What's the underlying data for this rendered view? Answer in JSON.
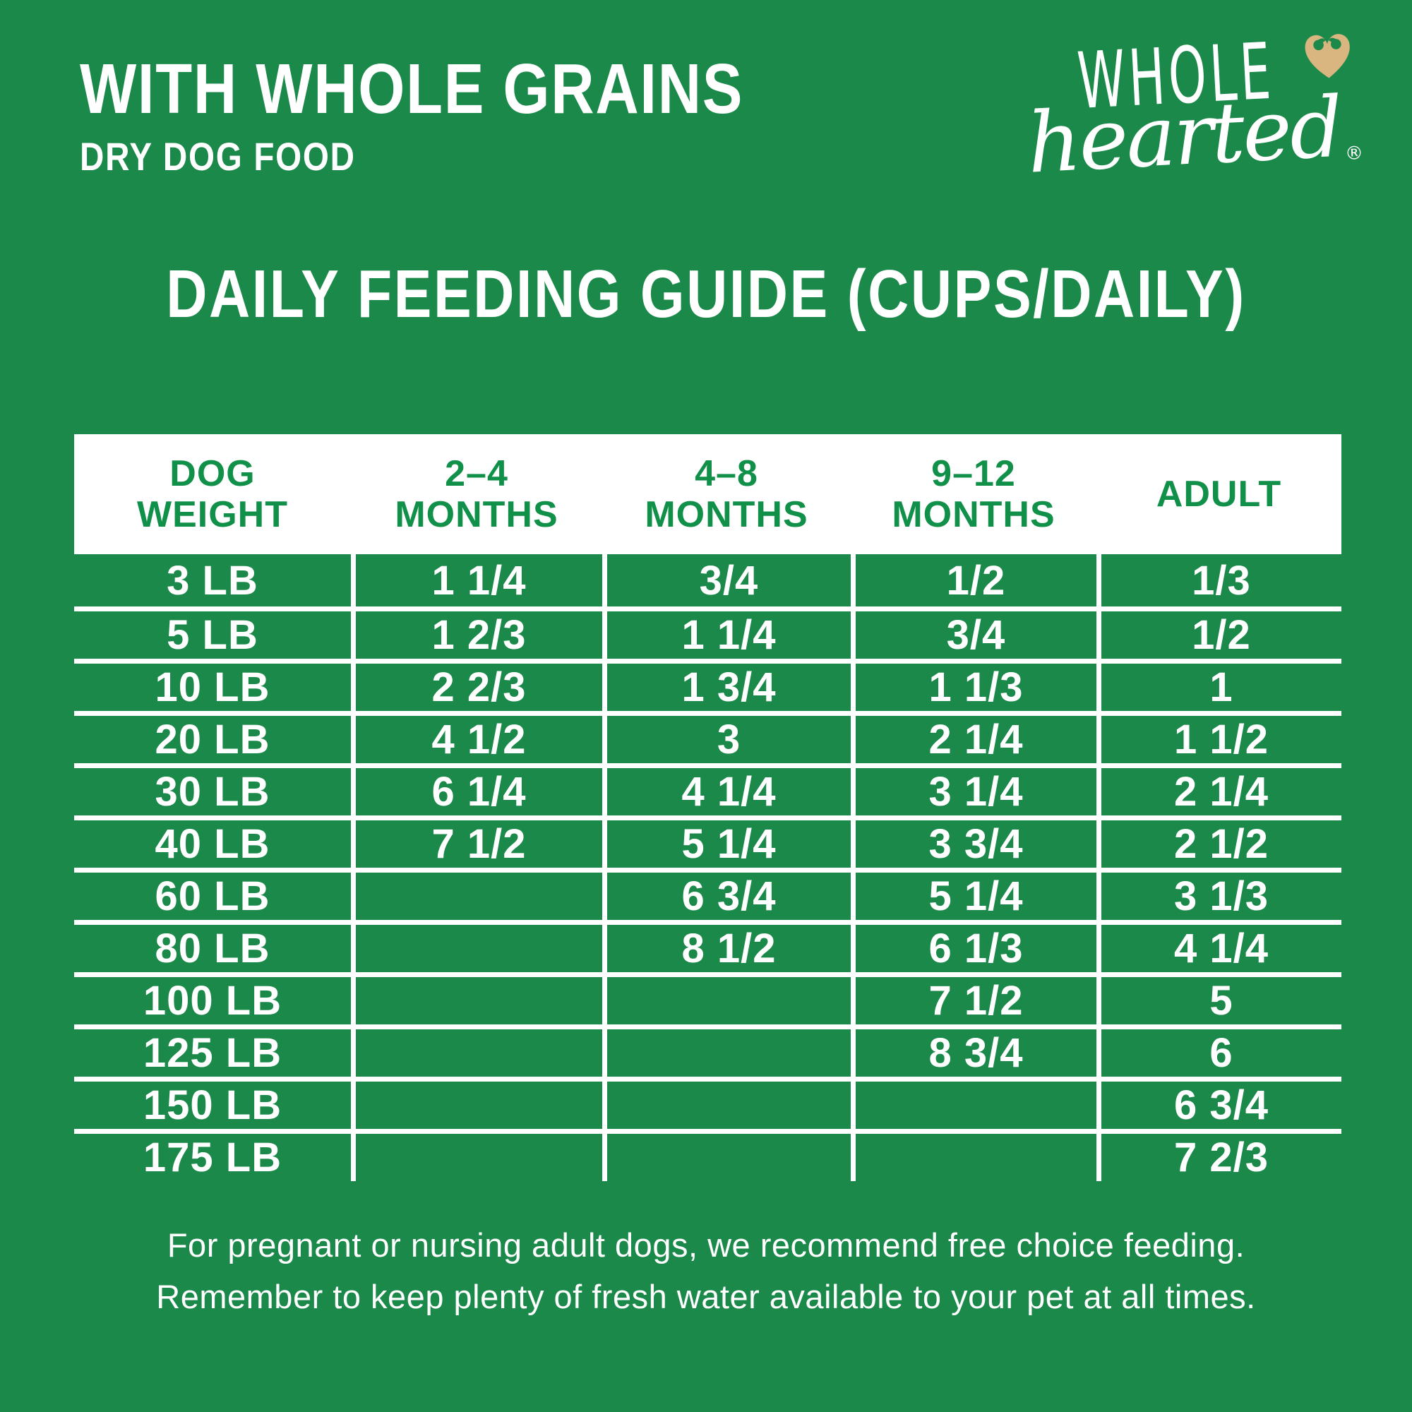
{
  "header": {
    "title": "WITH WHOLE GRAINS",
    "subtitle": "DRY DOG FOOD"
  },
  "logo": {
    "word_top": "WHOLE",
    "word_bottom": "hearted",
    "registered_mark": "®",
    "heart_nose_icon": "heart-shaped dog nose"
  },
  "chart_data": {
    "type": "table",
    "title": "DAILY FEEDING GUIDE (CUPS/DAILY)",
    "units": "cups per day",
    "columns": [
      "DOG WEIGHT",
      "2–4 MONTHS",
      "4–8 MONTHS",
      "9–12 MONTHS",
      "ADULT"
    ],
    "column_display_lines": [
      [
        "DOG",
        "WEIGHT"
      ],
      [
        "2–4",
        "MONTHS"
      ],
      [
        "4–8",
        "MONTHS"
      ],
      [
        "9–12",
        "MONTHS"
      ],
      [
        "ADULT"
      ]
    ],
    "rows": [
      [
        "3 LB",
        "1 1/4",
        "3/4",
        "1/2",
        "1/3"
      ],
      [
        "5 LB",
        "1 2/3",
        "1 1/4",
        "3/4",
        "1/2"
      ],
      [
        "10 LB",
        "2 2/3",
        "1 3/4",
        "1 1/3",
        "1"
      ],
      [
        "20 LB",
        "4 1/2",
        "3",
        "2 1/4",
        "1 1/2"
      ],
      [
        "30 LB",
        "6 1/4",
        "4 1/4",
        "3 1/4",
        "2 1/4"
      ],
      [
        "40 LB",
        "7 1/2",
        "5 1/4",
        "3 3/4",
        "2 1/2"
      ],
      [
        "60 LB",
        "",
        "6 3/4",
        "5 1/4",
        "3 1/3"
      ],
      [
        "80 LB",
        "",
        "8 1/2",
        "6 1/3",
        "4 1/4"
      ],
      [
        "100 LB",
        "",
        "",
        "7 1/2",
        "5"
      ],
      [
        "125 LB",
        "",
        "",
        "8 3/4",
        "6"
      ],
      [
        "150 LB",
        "",
        "",
        "",
        "6 3/4"
      ],
      [
        "175 LB",
        "",
        "",
        "",
        "7 2/3"
      ]
    ],
    "layout": {
      "header_background": "white",
      "grid_lines": "white",
      "legend": "none"
    }
  },
  "footer": {
    "line1": "For pregnant or nursing adult dogs, we recommend free choice feeding.",
    "line2": "Remember to keep plenty of fresh water available to your pet at all times."
  },
  "colors": {
    "green": "#1A894A",
    "text-green": "#11904A",
    "white": "#FFFFFF",
    "tan": "#D9B580"
  }
}
